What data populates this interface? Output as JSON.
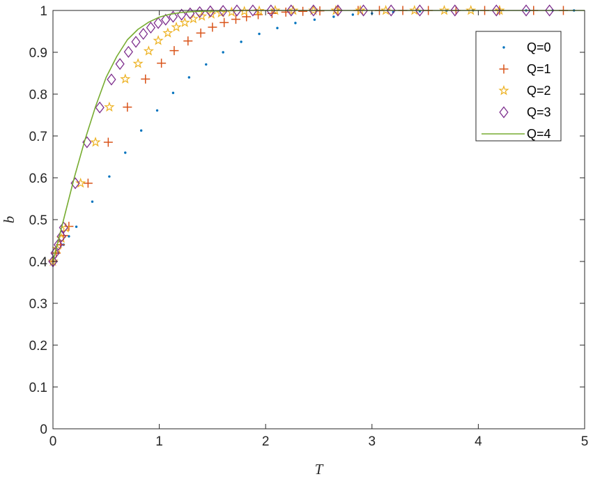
{
  "chart_data": {
    "type": "scatter",
    "title": "",
    "xlabel": "T",
    "ylabel": "b",
    "xlim": [
      0,
      5
    ],
    "ylim": [
      0,
      1
    ],
    "xticks": [
      "0",
      "1",
      "2",
      "3",
      "4",
      "5"
    ],
    "yticks": [
      "0",
      "0.1",
      "0.2",
      "0.3",
      "0.4",
      "0.5",
      "0.6",
      "0.7",
      "0.8",
      "0.9",
      "1"
    ],
    "grid": false,
    "legend_position": "top-right",
    "series": [
      {
        "name": "Q=0",
        "marker": "dot",
        "color": "#0072BD",
        "x": [
          0,
          0.05,
          0.1,
          0.15,
          0.22,
          0.37,
          0.53,
          0.68,
          0.83,
          0.98,
          1.13,
          1.28,
          1.44,
          1.6,
          1.77,
          1.94,
          2.11,
          2.28,
          2.46,
          2.64,
          2.82,
          3.0,
          3.2,
          3.45,
          3.7,
          3.95,
          4.2,
          4.45,
          4.7,
          4.9
        ],
        "y": [
          0.4,
          0.42,
          0.44,
          0.46,
          0.483,
          0.543,
          0.603,
          0.66,
          0.713,
          0.761,
          0.803,
          0.84,
          0.871,
          0.9,
          0.925,
          0.944,
          0.958,
          0.97,
          0.978,
          0.985,
          0.99,
          0.993,
          0.996,
          0.998,
          0.999,
          1.0,
          1.0,
          1.0,
          1.0,
          1.0
        ]
      },
      {
        "name": "Q=1",
        "marker": "plus",
        "color": "#D95319",
        "x": [
          0,
          0.03,
          0.07,
          0.1,
          0.15,
          0.33,
          0.52,
          0.7,
          0.87,
          1.02,
          1.14,
          1.27,
          1.39,
          1.5,
          1.61,
          1.72,
          1.82,
          1.93,
          2.06,
          2.19,
          2.35,
          2.51,
          2.68,
          2.87,
          3.07,
          3.29,
          3.53,
          3.79,
          4.06,
          4.2,
          4.52,
          4.8
        ],
        "y": [
          0.4,
          0.42,
          0.44,
          0.462,
          0.484,
          0.587,
          0.685,
          0.769,
          0.836,
          0.874,
          0.904,
          0.927,
          0.946,
          0.96,
          0.971,
          0.979,
          0.985,
          0.99,
          0.993,
          0.996,
          0.998,
          0.999,
          1.0,
          1.0,
          1.0,
          1.0,
          1.0,
          1.0,
          1.0,
          1.0,
          1.0,
          1.0
        ]
      },
      {
        "name": "Q=2",
        "marker": "pentagram",
        "color": "#EDB120",
        "x": [
          0,
          0.04,
          0.08,
          0.12,
          0.26,
          0.4,
          0.53,
          0.68,
          0.8,
          0.9,
          0.99,
          1.08,
          1.16,
          1.24,
          1.32,
          1.4,
          1.49,
          1.58,
          1.68,
          1.8,
          1.94,
          2.09,
          2.26,
          2.45,
          2.66,
          2.89,
          3.13,
          3.4,
          3.68,
          3.93,
          4.2
        ],
        "y": [
          0.4,
          0.43,
          0.455,
          0.48,
          0.587,
          0.685,
          0.769,
          0.836,
          0.873,
          0.903,
          0.928,
          0.946,
          0.96,
          0.971,
          0.98,
          0.986,
          0.991,
          0.994,
          0.996,
          0.998,
          0.999,
          1.0,
          1.0,
          1.0,
          1.0,
          1.0,
          1.0,
          1.0,
          1.0,
          1.0,
          1.0
        ]
      },
      {
        "name": "Q=3",
        "marker": "diamond",
        "color": "#7E2F8E",
        "x": [
          0,
          0.02,
          0.05,
          0.08,
          0.1,
          0.21,
          0.32,
          0.44,
          0.55,
          0.63,
          0.71,
          0.78,
          0.85,
          0.92,
          0.99,
          1.06,
          1.13,
          1.21,
          1.29,
          1.38,
          1.48,
          1.6,
          1.73,
          1.88,
          2.05,
          2.24,
          2.45,
          2.68,
          2.92,
          3.18,
          3.45,
          3.78,
          4.17,
          4.45,
          4.67
        ],
        "y": [
          0.4,
          0.42,
          0.44,
          0.46,
          0.481,
          0.587,
          0.685,
          0.768,
          0.835,
          0.872,
          0.901,
          0.925,
          0.944,
          0.959,
          0.97,
          0.978,
          0.985,
          0.99,
          0.993,
          0.996,
          0.998,
          0.999,
          1.0,
          1.0,
          1.0,
          1.0,
          1.0,
          1.0,
          1.0,
          1.0,
          1.0,
          1.0,
          1.0,
          1.0,
          1.0
        ]
      },
      {
        "name": "Q=4",
        "marker": "line",
        "color": "#77AC30",
        "x": [
          0,
          0.1,
          0.2,
          0.3,
          0.4,
          0.5,
          0.6,
          0.7,
          0.8,
          0.9,
          1.0,
          1.1,
          1.2,
          1.3,
          1.4,
          1.6,
          1.8,
          2.0,
          2.5,
          3.0,
          3.5,
          4.0,
          4.5,
          5.0
        ],
        "y": [
          0.4,
          0.5,
          0.6,
          0.69,
          0.77,
          0.84,
          0.89,
          0.93,
          0.955,
          0.972,
          0.984,
          0.991,
          0.995,
          0.997,
          0.998,
          0.999,
          1.0,
          1.0,
          1.0,
          1.0,
          1.0,
          1.0,
          1.0,
          1.0
        ]
      }
    ]
  }
}
